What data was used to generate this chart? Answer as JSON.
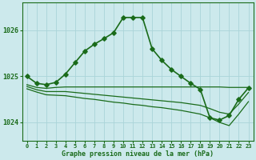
{
  "bg_color": "#cce9ec",
  "grid_color": "#aad4d8",
  "line_color": "#1a6b1a",
  "text_color": "#1a6b1a",
  "xlabel": "Graphe pression niveau de la mer (hPa)",
  "xlim": [
    -0.5,
    23.5
  ],
  "ylim": [
    1023.6,
    1026.6
  ],
  "yticks": [
    1024,
    1025,
    1026
  ],
  "xticks": [
    0,
    1,
    2,
    3,
    4,
    5,
    6,
    7,
    8,
    9,
    10,
    11,
    12,
    13,
    14,
    15,
    16,
    17,
    18,
    19,
    20,
    21,
    22,
    23
  ],
  "series": [
    {
      "x": [
        0,
        1,
        2,
        3,
        4,
        5,
        6,
        7,
        8,
        9,
        10,
        11,
        12,
        13,
        14,
        15,
        16,
        17,
        18,
        19,
        20,
        21,
        22,
        23
      ],
      "y": [
        1025.0,
        1024.85,
        1024.82,
        1024.87,
        1025.05,
        1025.3,
        1025.55,
        1025.7,
        1025.82,
        1025.95,
        1026.28,
        1026.28,
        1026.28,
        1025.6,
        1025.35,
        1025.15,
        1025.0,
        1024.85,
        1024.72,
        1024.1,
        1024.05,
        1024.15,
        1024.5,
        1024.75
      ],
      "marker": true,
      "lw": 1.2
    },
    {
      "x": [
        0,
        1,
        2,
        3,
        4,
        5,
        23
      ],
      "y": [
        1024.82,
        1024.76,
        1024.74,
        1024.76,
        1024.77,
        1024.77,
        1024.76
      ],
      "marker": false,
      "lw": 0.9,
      "full_x": [
        0,
        1,
        2,
        3,
        4,
        5,
        6,
        7,
        8,
        9,
        10,
        11,
        12,
        13,
        14,
        15,
        16,
        17,
        18,
        19,
        20,
        21,
        22,
        23
      ],
      "full_y": [
        1024.82,
        1024.76,
        1024.74,
        1024.76,
        1024.77,
        1024.77,
        1024.77,
        1024.77,
        1024.77,
        1024.77,
        1024.77,
        1024.77,
        1024.77,
        1024.77,
        1024.77,
        1024.77,
        1024.77,
        1024.77,
        1024.77,
        1024.77,
        1024.77,
        1024.76,
        1024.76,
        1024.76
      ]
    },
    {
      "full_x": [
        0,
        1,
        2,
        3,
        4,
        5,
        6,
        7,
        8,
        9,
        10,
        11,
        12,
        13,
        14,
        15,
        16,
        17,
        18,
        19,
        20,
        21,
        22,
        23
      ],
      "full_y": [
        1024.78,
        1024.71,
        1024.67,
        1024.67,
        1024.67,
        1024.65,
        1024.63,
        1024.61,
        1024.59,
        1024.57,
        1024.55,
        1024.53,
        1024.51,
        1024.49,
        1024.47,
        1024.45,
        1024.43,
        1024.4,
        1024.37,
        1024.3,
        1024.22,
        1024.18,
        1024.4,
        1024.65
      ],
      "marker": false,
      "lw": 0.9
    },
    {
      "full_x": [
        0,
        1,
        2,
        3,
        4,
        5,
        6,
        7,
        8,
        9,
        10,
        11,
        12,
        13,
        14,
        15,
        16,
        17,
        18,
        19,
        20,
        21,
        22,
        23
      ],
      "full_y": [
        1024.73,
        1024.66,
        1024.6,
        1024.59,
        1024.58,
        1024.55,
        1024.52,
        1024.5,
        1024.47,
        1024.44,
        1024.42,
        1024.39,
        1024.37,
        1024.34,
        1024.32,
        1024.29,
        1024.26,
        1024.22,
        1024.18,
        1024.1,
        1024.0,
        1023.93,
        1024.18,
        1024.45
      ],
      "marker": false,
      "lw": 0.9
    }
  ]
}
